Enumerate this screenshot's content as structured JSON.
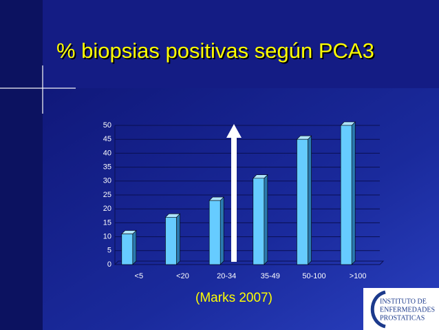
{
  "chart_data": {
    "type": "bar",
    "title": "% biopsias positivas según  PCA3",
    "categories": [
      "<5",
      "<20",
      "20-34",
      "35-49",
      "50-100",
      ">100"
    ],
    "values": [
      11,
      17,
      23,
      31,
      45,
      50
    ],
    "color": "#66ccff",
    "ylim": [
      0,
      50
    ],
    "yticks": [
      0,
      5,
      10,
      15,
      20,
      25,
      30,
      35,
      40,
      45,
      50
    ],
    "grid": true,
    "annotation": "(Marks 2007)"
  },
  "logo": {
    "lines": [
      "INSTITUTO DE",
      "ENFERMEDADES",
      "PROSTATICAS"
    ]
  }
}
